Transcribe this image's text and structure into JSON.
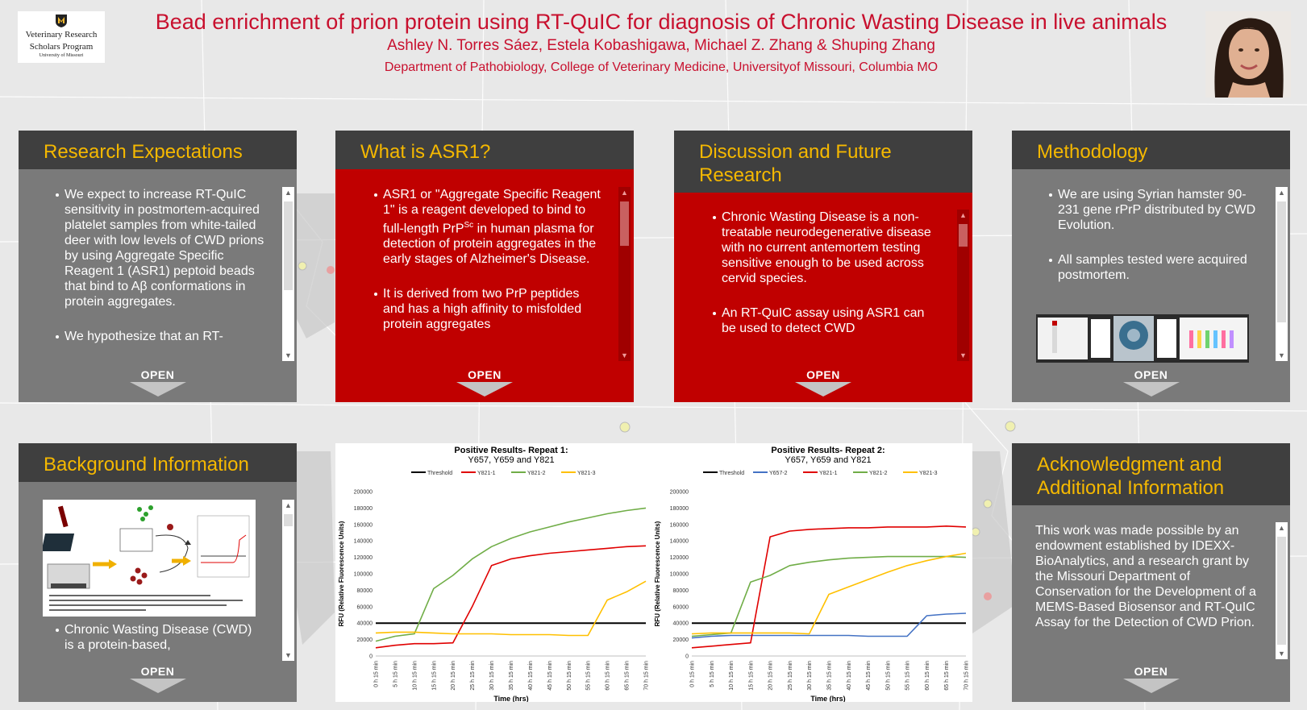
{
  "header": {
    "title": "Bead enrichment of prion protein using RT-QuIC for diagnosis of Chronic Wasting Disease in live animals",
    "authors": "Ashley N. Torres Sáez, Estela Kobashigawa, Michael Z. Zhang & Shuping Zhang",
    "department": "Department of Pathobiology, College of Veterinary Medicine, Universityof Missouri, Columbia MO",
    "logo_line1": "Veterinary Research",
    "logo_line2": "Scholars Program",
    "logo_line3": "University of Missouri"
  },
  "open_label": "OPEN",
  "panels": {
    "research": {
      "title": "Research Expectations",
      "items": [
        "We expect to increase RT-QuIC sensitivity in postmortem-acquired platelet samples from white-tailed deer with low levels of CWD prions by using Aggregate Specific Reagent 1 (ASR1) peptoid beads that bind to Aβ conformations in protein aggregates.",
        "We hypothesize that an RT-"
      ]
    },
    "asr1": {
      "title": "What is ASR1?",
      "item1_a": "ASR1 or \"Aggregate Specific Reagent 1\" is a reagent developed to bind to full-length PrP",
      "item1_sup": "Sc",
      "item1_b": " in human plasma for detection of protein aggregates in the early stages of Alzheimer's Disease.",
      "item2": "It is derived from two PrP peptides and has a high affinity to misfolded protein aggregates"
    },
    "discussion": {
      "title": "Discussion and Future Research",
      "items": [
        "Chronic Wasting Disease is a non-treatable neurodegenerative disease with no current antemortem testing sensitive enough to be used across cervid species.",
        "An RT-QuIC assay using ASR1 can be used to detect CWD"
      ]
    },
    "methodology": {
      "title": "Methodology",
      "items": [
        "We are using Syrian hamster 90-231 gene rPrP distributed by CWD Evolution.",
        "All samples tested were acquired postmortem."
      ]
    },
    "background": {
      "title": "Background Information",
      "items": [
        "Chronic Wasting Disease (CWD) is a protein-based,"
      ]
    },
    "acknowledgment": {
      "title": "Acknowledgment and Additional Information",
      "text": "This work was made possible by an endowment established by IDEXX-BioAnalytics, and a research grant by the Missouri Department of Conservation for the Development of a MEMS-Based Biosensor and RT-QuIC Assay for the Detection of CWD Prion."
    }
  },
  "chart_data": [
    {
      "type": "line",
      "title": "Positive Results- Repeat 1:",
      "subtitle": "Y657, Y659 and Y821",
      "xlabel": "Time (hrs)",
      "ylabel": "RFU (Relative Fluorescence Units)",
      "ylim": [
        0,
        200000
      ],
      "yticks": [
        0,
        20000,
        40000,
        60000,
        80000,
        100000,
        120000,
        140000,
        160000,
        180000,
        200000
      ],
      "x": [
        "0 h 15 min",
        "5 h 15 min",
        "10 h 15 min",
        "15 h 15 min",
        "20 h 15 min",
        "25 h 15 min",
        "30 h 15 min",
        "35 h 15 min",
        "40 h 15 min",
        "45 h 15 min",
        "50 h 15 min",
        "55 h 15 min",
        "60 h 15 min",
        "65 h 15 min",
        "70 h 15 min"
      ],
      "legend_position": "top",
      "series": [
        {
          "name": "Threshold",
          "color": "#000000",
          "values": [
            40000,
            40000,
            40000,
            40000,
            40000,
            40000,
            40000,
            40000,
            40000,
            40000,
            40000,
            40000,
            40000,
            40000,
            40000
          ]
        },
        {
          "name": "Y821-1",
          "color": "#e00000",
          "values": [
            10000,
            13000,
            15000,
            15000,
            16000,
            60000,
            110000,
            118000,
            122000,
            125000,
            127000,
            129000,
            131000,
            133000,
            134000
          ]
        },
        {
          "name": "Y821-2",
          "color": "#70ad47",
          "values": [
            18000,
            24000,
            27000,
            82000,
            98000,
            118000,
            133000,
            143000,
            151000,
            157000,
            163000,
            168000,
            173000,
            177000,
            180000
          ]
        },
        {
          "name": "Y821-3",
          "color": "#ffc000",
          "values": [
            28000,
            29000,
            29000,
            28000,
            27000,
            27000,
            27000,
            26000,
            26000,
            26000,
            25000,
            25000,
            68000,
            78000,
            91000
          ]
        }
      ]
    },
    {
      "type": "line",
      "title": "Positive Results- Repeat 2:",
      "subtitle": "Y657, Y659 and Y821",
      "xlabel": "Time (hrs)",
      "ylabel": "RFU (Relative Fluorescence Units)",
      "ylim": [
        0,
        200000
      ],
      "yticks": [
        0,
        20000,
        40000,
        60000,
        80000,
        100000,
        120000,
        140000,
        160000,
        180000,
        200000
      ],
      "x": [
        "0 h 15 min",
        "5 h 15 min",
        "10 h 15 min",
        "15 h 15 min",
        "20 h 15 min",
        "25 h 15 min",
        "30 h 15 min",
        "35 h 15 min",
        "40 h 15 min",
        "45 h 15 min",
        "50 h 15 min",
        "55 h 15 min",
        "60 h 15 min",
        "65 h 15 min",
        "70 h 15 min"
      ],
      "legend_position": "top",
      "series": [
        {
          "name": "Threshold",
          "color": "#000000",
          "values": [
            40000,
            40000,
            40000,
            40000,
            40000,
            40000,
            40000,
            40000,
            40000,
            40000,
            40000,
            40000,
            40000,
            40000,
            40000
          ]
        },
        {
          "name": "Y657-2",
          "color": "#4472c4",
          "values": [
            22000,
            24000,
            25000,
            25000,
            25000,
            25000,
            25000,
            25000,
            25000,
            24000,
            24000,
            24000,
            49000,
            51000,
            52000
          ]
        },
        {
          "name": "Y821-1",
          "color": "#e00000",
          "values": [
            10000,
            12000,
            14000,
            16000,
            145000,
            152000,
            154000,
            155000,
            156000,
            156000,
            157000,
            157000,
            157000,
            158000,
            157000
          ]
        },
        {
          "name": "Y821-2",
          "color": "#70ad47",
          "values": [
            24000,
            26000,
            28000,
            90000,
            98000,
            110000,
            114000,
            117000,
            119000,
            120000,
            121000,
            121000,
            121000,
            121000,
            120000
          ]
        },
        {
          "name": "Y821-3",
          "color": "#ffc000",
          "values": [
            27000,
            28000,
            28000,
            28000,
            28000,
            28000,
            27000,
            75000,
            84000,
            93000,
            102000,
            110000,
            116000,
            121000,
            125000
          ]
        }
      ]
    }
  ]
}
